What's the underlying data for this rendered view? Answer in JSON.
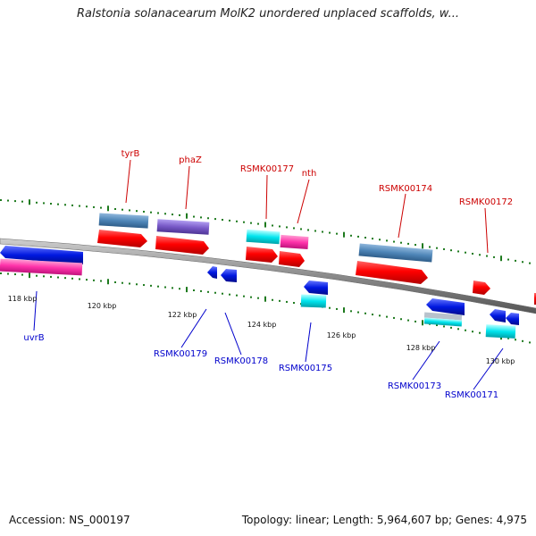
{
  "title": "Ralstonia solanacearum MolK2 unordered unplaced scaffolds, w...",
  "footer": {
    "accession": "Accession: NS_000197",
    "topology": "Topology: linear; Length: 5,964,607 bp; Genes: 4,975"
  },
  "scale_labels": [
    "118 kbp",
    "120 kbp",
    "122 kbp",
    "124 kbp",
    "126 kbp",
    "128 kbp",
    "130 kbp"
  ],
  "top_labels": [
    "tyrB",
    "phaZ",
    "RSMK00177",
    "nth",
    "RSMK00174",
    "RSMK00172"
  ],
  "bottom_labels": [
    "uvrB",
    "RSMK00179",
    "RSMK00178",
    "RSMK00175",
    "RSMK00173",
    "RSMK00171"
  ],
  "colors": {
    "cds_red": "#ff0000",
    "gene_steelblue": "#4f86b8",
    "gene_purple": "#7a5bc9",
    "gene_cyan": "#00e5ee",
    "gene_pink": "#ff33aa",
    "gene_blue": "#0018e0",
    "tick_green": "#1e7a1e",
    "backbone": "#8a8a8a",
    "label_top": "#cc0000",
    "label_bottom": "#0000cc"
  }
}
